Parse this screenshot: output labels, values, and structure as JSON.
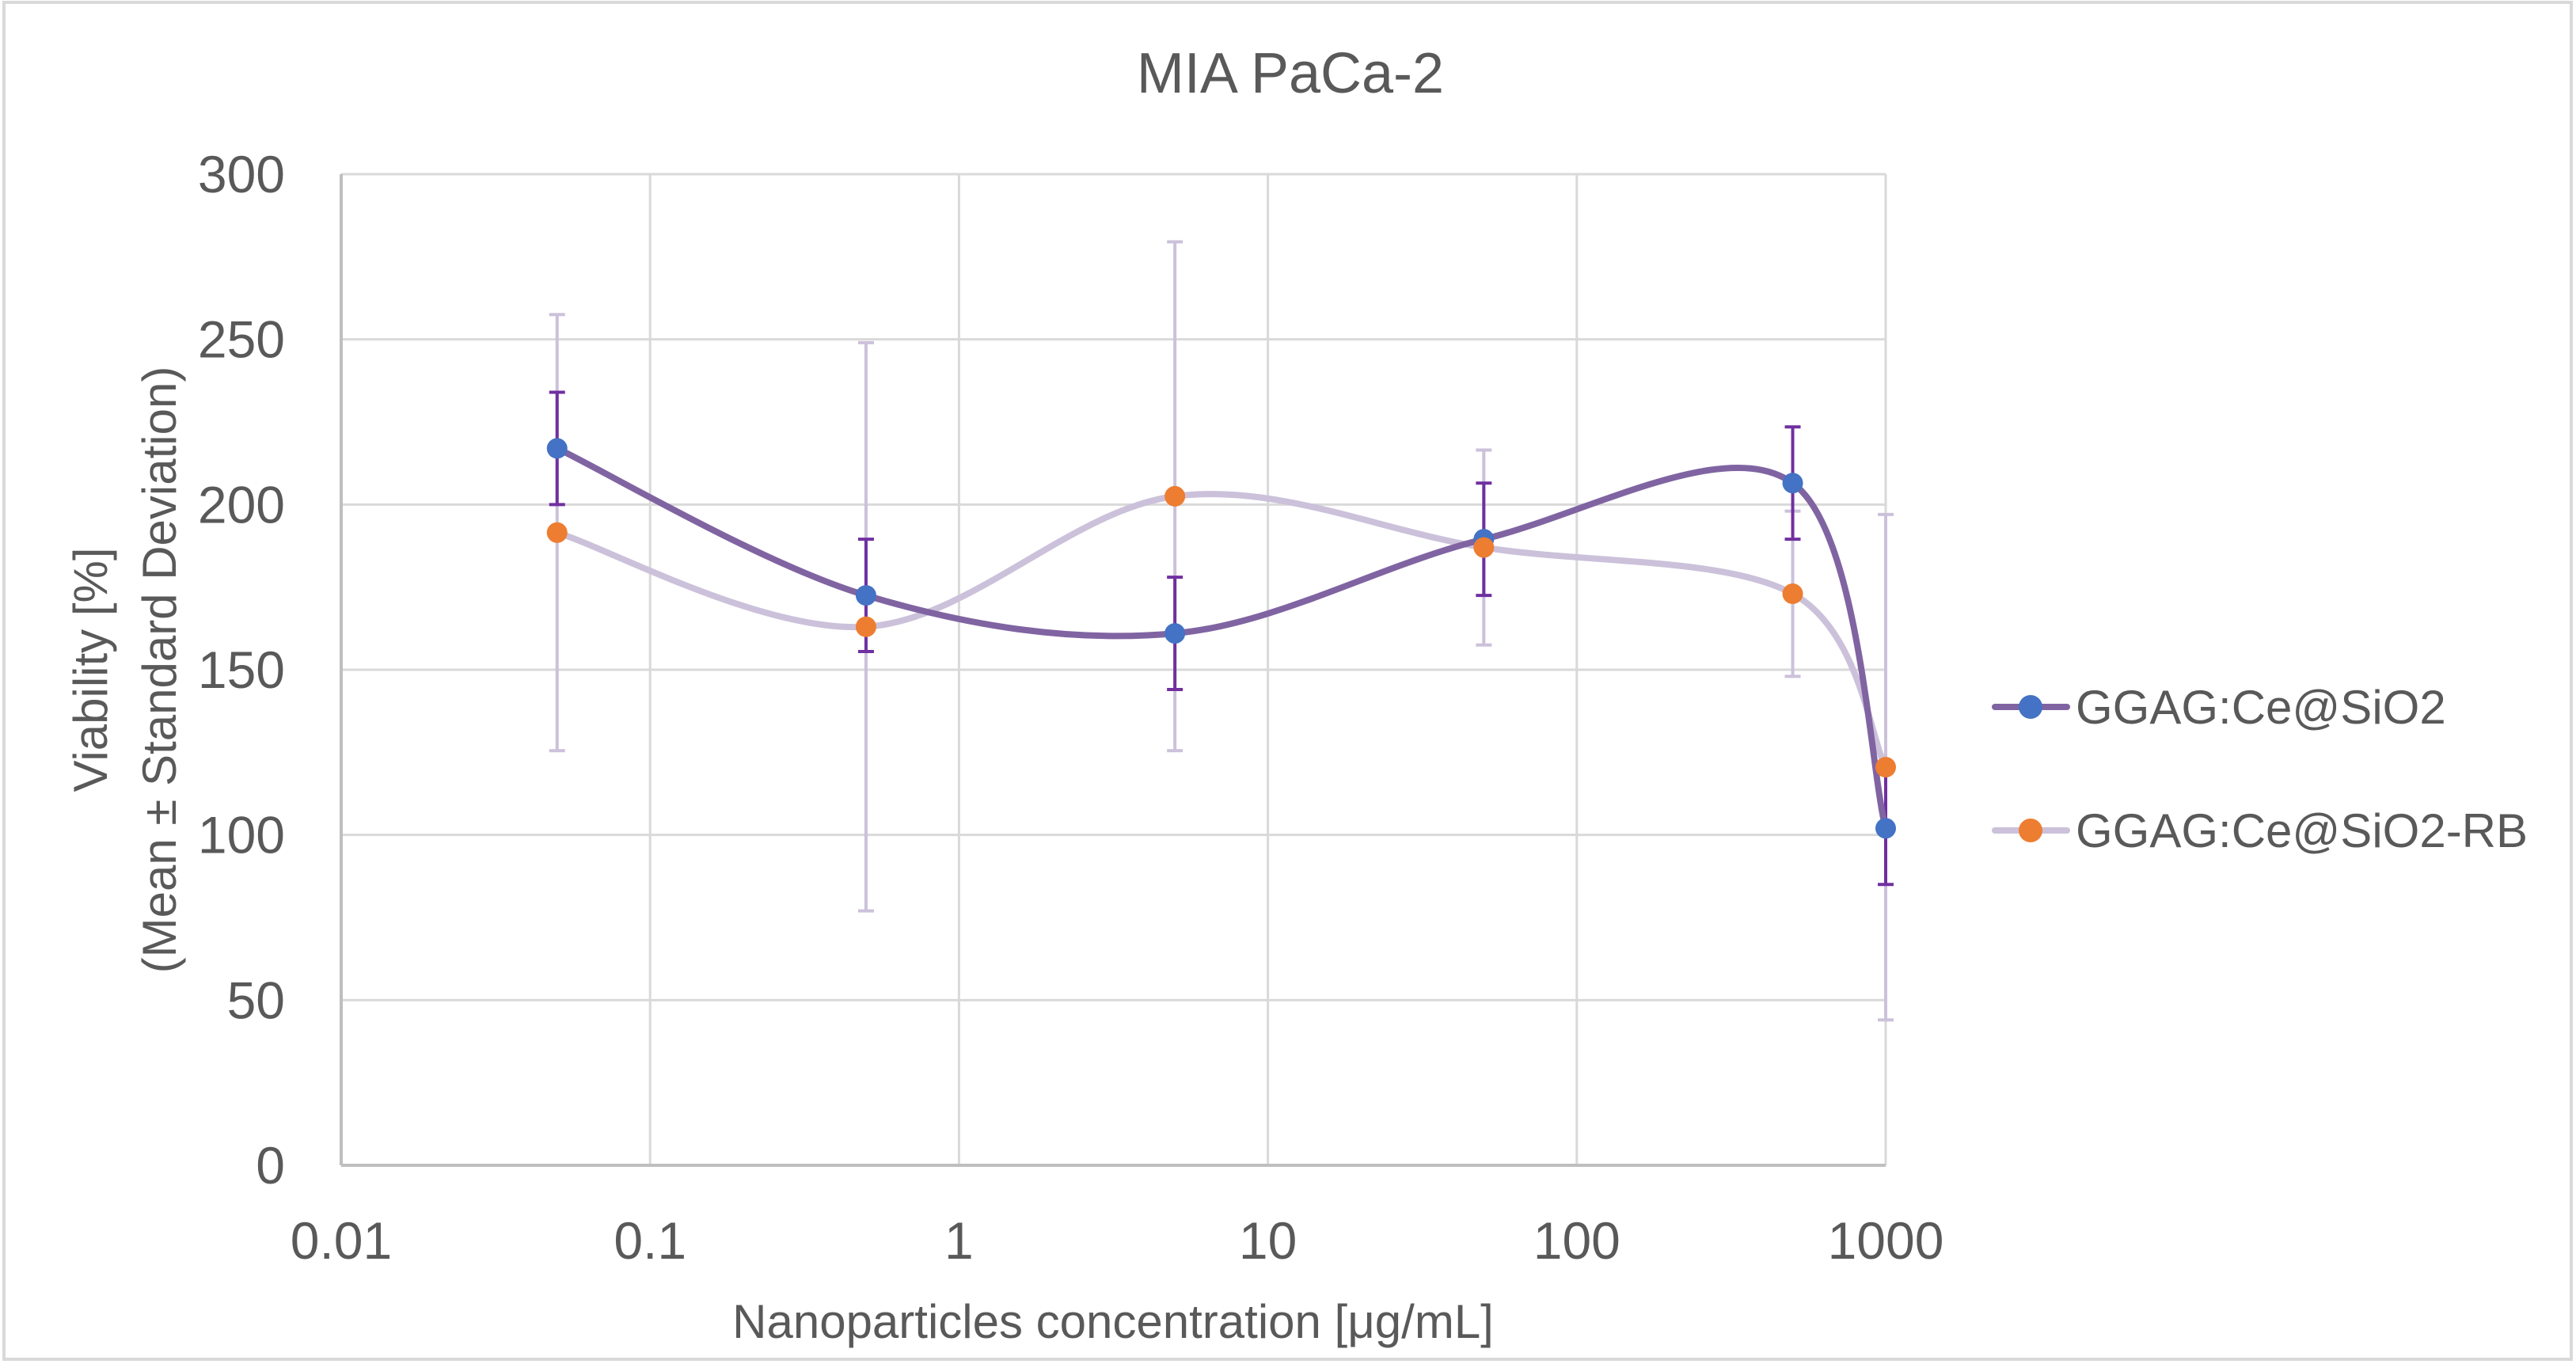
{
  "chart_data": {
    "type": "line",
    "title": "MIA PaCa-2",
    "xlabel": "Nanoparticles concentration [μg/mL]",
    "ylabel": [
      "Viability [%]",
      "(Mean ± Standard Deviation)"
    ],
    "xscale": "log",
    "xlim": [
      0.01,
      1000
    ],
    "ylim": [
      0,
      300
    ],
    "x_ticks": [
      0.01,
      0.1,
      1,
      10,
      100,
      1000
    ],
    "x_tick_labels": [
      "0.01",
      "0.1",
      "1",
      "10",
      "100",
      "1000"
    ],
    "y_ticks": [
      0,
      50,
      100,
      150,
      200,
      250,
      300
    ],
    "y_tick_labels": [
      "0",
      "50",
      "100",
      "150",
      "200",
      "250",
      "300"
    ],
    "grid": true,
    "legend_position": "right",
    "smooth": true,
    "x": [
      0.05,
      0.5,
      5,
      50,
      500,
      1000
    ],
    "series": [
      {
        "name": "GGAG:Ce@SiO2",
        "values": [
          217,
          172.5,
          161,
          189.5,
          206.5,
          102
        ],
        "error_plus": [
          17,
          17,
          17,
          17,
          17,
          17
        ],
        "error_minus": [
          17,
          17,
          17,
          17,
          17,
          17
        ],
        "line_color": "#8064a2",
        "marker_color": "#4472c4",
        "error_color": "#7030a0"
      },
      {
        "name": "GGAG:Ce@SiO2-RB",
        "values": [
          191.5,
          163,
          202.5,
          187,
          173,
          120.5
        ],
        "error_plus": [
          66,
          86,
          77,
          29.5,
          25,
          76.5
        ],
        "error_minus": [
          66,
          86,
          77,
          29.5,
          25,
          76.5
        ],
        "line_color": "#ccc1da",
        "marker_color": "#ed7d31",
        "error_color": "#ccc1da"
      }
    ]
  }
}
